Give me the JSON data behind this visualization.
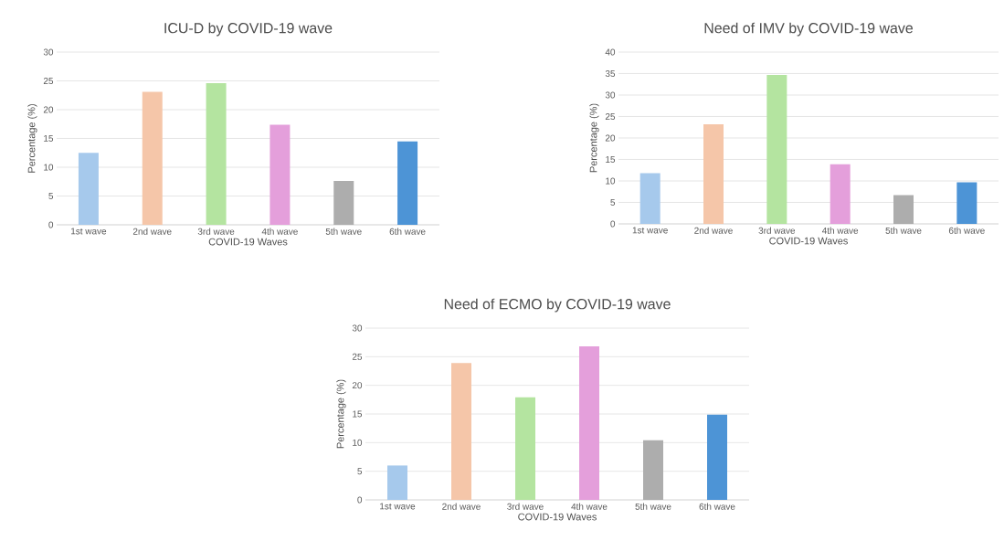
{
  "chart_data": [
    {
      "type": "bar",
      "title": "ICU-D by COVID-19 wave",
      "xlabel": "COVID-19 Waves",
      "ylabel": "Percentage (%)",
      "categories": [
        "1st wave",
        "2nd wave",
        "3rd wave",
        "4th wave",
        "5th wave",
        "6th wave"
      ],
      "values": [
        12.5,
        23.1,
        24.6,
        17.4,
        7.6,
        14.5
      ],
      "colors": [
        "#a6c9ec",
        "#f5c6a9",
        "#b4e4a0",
        "#e49fdb",
        "#adadad",
        "#4d94d6"
      ],
      "ylim": [
        0,
        30
      ],
      "yticks": [
        0,
        5,
        10,
        15,
        20,
        25,
        30
      ],
      "grid": "y"
    },
    {
      "type": "bar",
      "title": "Need of IMV by COVID-19 wave",
      "xlabel": "COVID-19 Waves",
      "ylabel": "Percentage (%)",
      "categories": [
        "1st wave",
        "2nd wave",
        "3rd wave",
        "4th wave",
        "5th wave",
        "6th wave"
      ],
      "values": [
        11.8,
        23.2,
        34.7,
        13.9,
        6.7,
        9.7
      ],
      "colors": [
        "#a6c9ec",
        "#f5c6a9",
        "#b4e4a0",
        "#e49fdb",
        "#adadad",
        "#4d94d6"
      ],
      "ylim": [
        0,
        40
      ],
      "yticks": [
        0,
        5,
        10,
        15,
        20,
        25,
        30,
        35,
        40
      ],
      "grid": "y"
    },
    {
      "type": "bar",
      "title": "Need of ECMO by COVID-19 wave",
      "xlabel": "COVID-19 Waves",
      "ylabel": "Percentage (%)",
      "categories": [
        "1st wave",
        "2nd wave",
        "3rd wave",
        "4th wave",
        "5th wave",
        "6th wave"
      ],
      "values": [
        6.0,
        23.9,
        17.9,
        26.8,
        10.4,
        14.9
      ],
      "colors": [
        "#a6c9ec",
        "#f5c6a9",
        "#b4e4a0",
        "#e49fdb",
        "#adadad",
        "#4d94d6"
      ],
      "ylim": [
        0,
        30
      ],
      "yticks": [
        0,
        5,
        10,
        15,
        20,
        25,
        30
      ],
      "grid": "y"
    }
  ]
}
